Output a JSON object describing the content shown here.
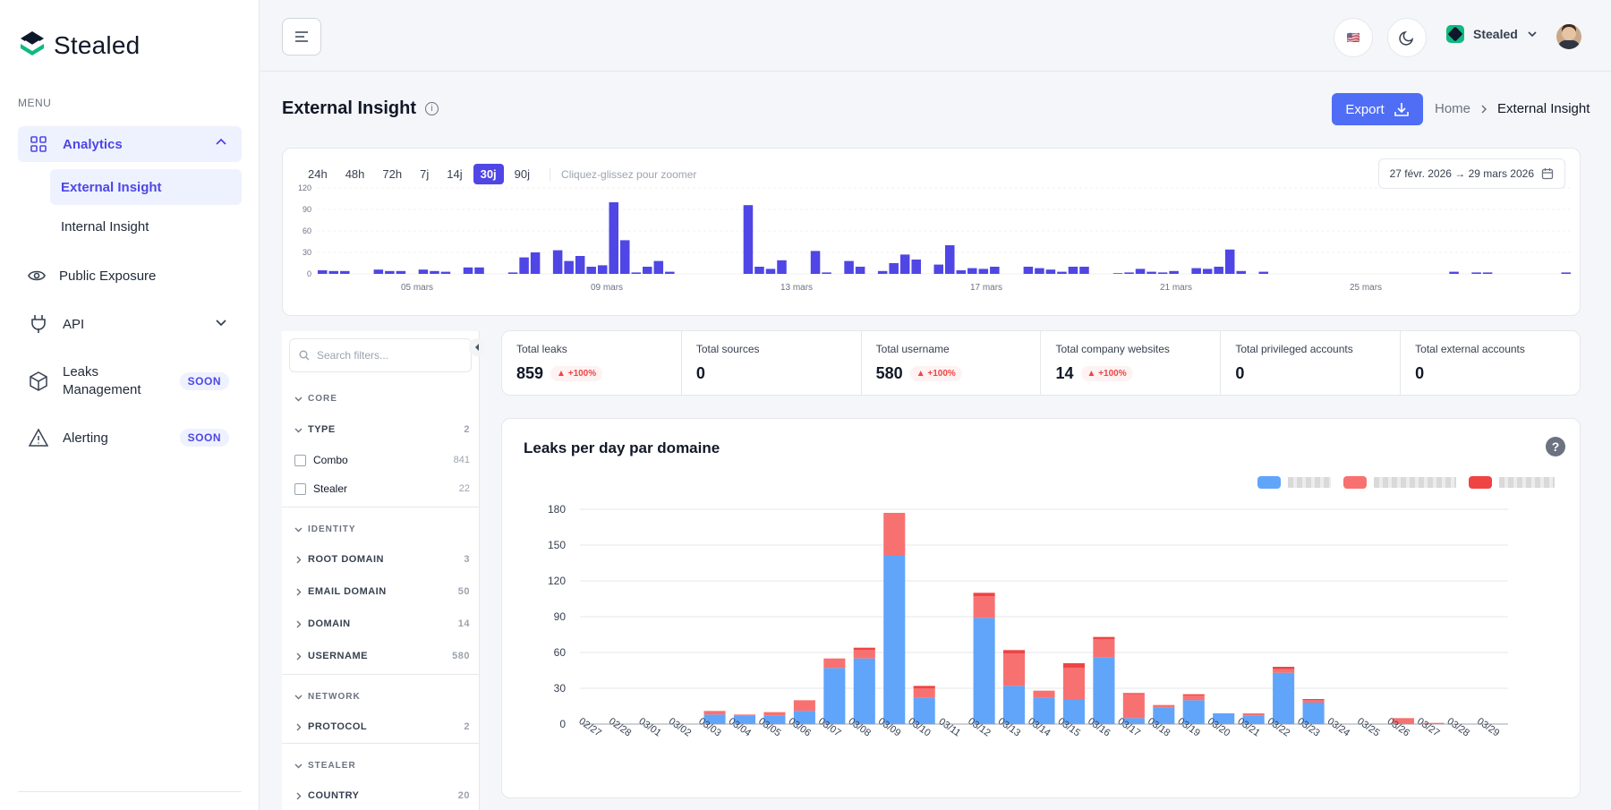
{
  "brand": {
    "name": "Stealed"
  },
  "sidebar": {
    "menu_title": "MENU",
    "analytics": "Analytics",
    "external": "External Insight",
    "internal": "Internal Insight",
    "public_exposure": "Public Exposure",
    "api": "API",
    "leaks_mgmt_line1": "Leaks",
    "leaks_mgmt_line2": "Management",
    "alerting": "Alerting",
    "soon": "SOON"
  },
  "topbar": {
    "org_name": "Stealed",
    "flag": "🇺🇸"
  },
  "page": {
    "title": "External Insight",
    "export_label": "Export",
    "breadcrumb_home": "Home",
    "breadcrumb_current": "External Insight"
  },
  "timeline": {
    "ranges": [
      "24h",
      "48h",
      "72h",
      "7j",
      "14j",
      "30j",
      "90j"
    ],
    "active_range": "30j",
    "zoom_hint": "Cliquez-glissez pour zoomer",
    "date_range": "27 févr. 2026 → 29 mars 2026",
    "y_ticks": [
      "0",
      "30",
      "60",
      "90",
      "120"
    ],
    "x_ticks": [
      "05 mars",
      "09 mars",
      "13 mars",
      "17 mars",
      "21 mars",
      "25 mars"
    ],
    "color": "#4f46e5"
  },
  "filters": {
    "search_placeholder": "Search filters...",
    "core": "CORE",
    "type": "TYPE",
    "type_count": "2",
    "combo": "Combo",
    "combo_count": "841",
    "stealer_opt": "Stealer",
    "stealer_count": "22",
    "identity": "IDENTITY",
    "root_domain": "ROOT DOMAIN",
    "root_domain_count": "3",
    "email_domain": "EMAIL DOMAIN",
    "email_domain_count": "50",
    "domain": "DOMAIN",
    "domain_count": "14",
    "username": "USERNAME",
    "username_count": "580",
    "network": "NETWORK",
    "protocol": "PROTOCOL",
    "protocol_count": "2",
    "stealer_sec": "STEALER",
    "country": "COUNTRY",
    "country_count": "20"
  },
  "stats": [
    {
      "label": "Total leaks",
      "value": "859",
      "badge": "▲ +100%"
    },
    {
      "label": "Total sources",
      "value": "0",
      "badge": ""
    },
    {
      "label": "Total username",
      "value": "580",
      "badge": "▲ +100%"
    },
    {
      "label": "Total company websites",
      "value": "14",
      "badge": "▲ +100%"
    },
    {
      "label": "Total privileged accounts",
      "value": "0",
      "badge": ""
    },
    {
      "label": "Total external accounts",
      "value": "0",
      "badge": ""
    }
  ],
  "chart_data": {
    "type": "bar",
    "stacked": true,
    "title": "Leaks per day par domaine",
    "categories": [
      "02/27",
      "02/28",
      "03/01",
      "03/02",
      "03/03",
      "03/04",
      "03/05",
      "03/06",
      "03/07",
      "03/08",
      "03/09",
      "03/10",
      "03/11",
      "03/12",
      "03/13",
      "03/14",
      "03/15",
      "03/16",
      "03/17",
      "03/18",
      "03/19",
      "03/20",
      "03/21",
      "03/22",
      "03/23",
      "03/24",
      "03/25",
      "03/26",
      "03/27",
      "03/28",
      "03/29"
    ],
    "series": [
      {
        "values": [
          0,
          0,
          0,
          0,
          8,
          7,
          7,
          11,
          47,
          55,
          141,
          22,
          0,
          89,
          32,
          22,
          21,
          56,
          5,
          14,
          20,
          9,
          7,
          43,
          18,
          0,
          0,
          0,
          0,
          0,
          0
        ],
        "color": "#60a5fa"
      },
      {
        "values": [
          0,
          0,
          0,
          0,
          3,
          1,
          3,
          9,
          8,
          7,
          36,
          8,
          0,
          18,
          27,
          6,
          26,
          15,
          20,
          2,
          4,
          0,
          2,
          3,
          2,
          0,
          0,
          5,
          1,
          0,
          0
        ],
        "color": "#f87171"
      },
      {
        "values": [
          0,
          0,
          0,
          0,
          0,
          0,
          0,
          0,
          0,
          2,
          0,
          2,
          0,
          3,
          3,
          0,
          4,
          2,
          1,
          0,
          1,
          0,
          0,
          2,
          1,
          0,
          0,
          0,
          0,
          0,
          0
        ],
        "color": "#ef4444"
      }
    ],
    "ylim": [
      0,
      180
    ],
    "yticks": [
      0,
      30,
      60,
      90,
      120,
      150,
      180
    ],
    "grid": true,
    "legend": "top-right"
  }
}
